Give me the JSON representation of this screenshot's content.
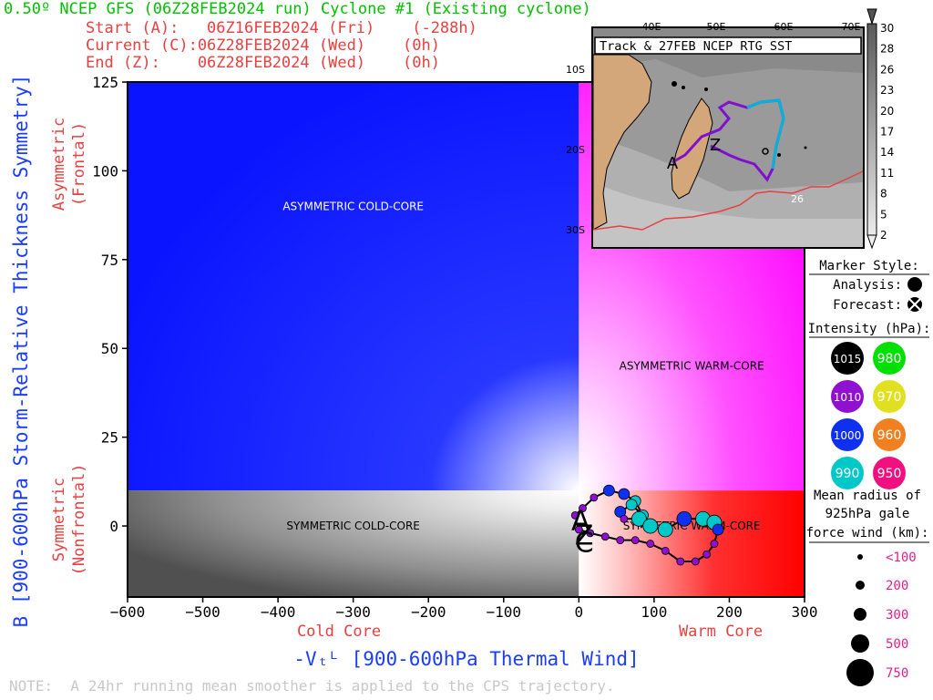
{
  "header": {
    "title": "0.50º NCEP GFS (06Z28FEB2024 run) Cyclone #1 (Existing cyclone)",
    "start": "Start (A):   06Z16FEB2024 (Fri)    (-288h)",
    "current": "Current (C):06Z28FEB2024 (Wed)    (0h)",
    "end": "End (Z):    06Z28FEB2024 (Wed)    (0h)"
  },
  "chart_data": {
    "type": "scatter",
    "xlabel": "-Vₜᴸ [900-600hPa Thermal Wind]",
    "ylabel": "B [900-600hPa Storm-Relative Thickness Symmetry]",
    "x_sublabel_left": "Cold Core",
    "x_sublabel_right": "Warm Core",
    "y_sublabel_top": "Asymmetric (Frontal)",
    "y_sublabel_top_lines": [
      "Asymmetric",
      "(Frontal)"
    ],
    "y_sublabel_bottom_lines": [
      "Symmetric",
      "(Nonfrontal)"
    ],
    "xlim": [
      -600,
      300
    ],
    "ylim": [
      -20,
      125
    ],
    "xticks": [
      -600,
      -500,
      -400,
      -300,
      -200,
      -100,
      0,
      100,
      200,
      300
    ],
    "yticks": [
      0,
      25,
      50,
      75,
      100,
      125
    ],
    "symmetry_threshold": 10,
    "regions": {
      "asym_cold": "ASYMMETRIC COLD-CORE",
      "asym_warm": "ASYMMETRIC WARM-CORE",
      "sym_cold": "SYMMETRIC COLD-CORE",
      "sym_warm": "SYMMETRIC WARM-CORE"
    },
    "start_marker": "A",
    "end_marker": "Z",
    "current_marker": "C",
    "track": {
      "x": [
        -5,
        5,
        20,
        40,
        60,
        75,
        85,
        70,
        55,
        60,
        80,
        95,
        115,
        140,
        165,
        180,
        185,
        180,
        170,
        155,
        135,
        115,
        95,
        75,
        55,
        35,
        15,
        0
      ],
      "y": [
        3,
        5,
        8,
        10,
        9,
        7,
        3,
        6,
        4,
        2,
        2,
        0,
        -1,
        2,
        2,
        1,
        -1,
        -5,
        -8,
        -10,
        -10,
        -7,
        -5,
        -4,
        -4,
        -3,
        -2,
        -1
      ],
      "pressure": [
        1010,
        1010,
        1010,
        1000,
        1000,
        990,
        990,
        990,
        1000,
        1010,
        990,
        990,
        990,
        1000,
        990,
        990,
        1000,
        1010,
        1010,
        1010,
        1010,
        1010,
        1010,
        1010,
        1010,
        1010,
        1010,
        1010
      ],
      "size": [
        200,
        200,
        200,
        300,
        300,
        300,
        300,
        300,
        300,
        200,
        500,
        500,
        500,
        500,
        500,
        500,
        300,
        200,
        200,
        200,
        200,
        200,
        200,
        200,
        200,
        200,
        200,
        200
      ]
    }
  },
  "inset": {
    "title": "Track & 27FEB NCEP RTG SST",
    "lon_labels": [
      "40E",
      "50E",
      "60E",
      "70E"
    ],
    "lat_labels": [
      "10S",
      "20S",
      "30S"
    ],
    "sst_label": "26",
    "colorbar_ticks": [
      30,
      28,
      26,
      23,
      20,
      17,
      14,
      11,
      8,
      5,
      2
    ]
  },
  "legend": {
    "marker_style_title": "Marker Style:",
    "analysis_label": "Analysis:",
    "forecast_label": "Forecast:",
    "intensity_title": "Intensity (hPa):",
    "intensity": [
      {
        "value": "1015",
        "color": "#000000",
        "text_color": "#ffffff"
      },
      {
        "value": "980",
        "color": "#00e000",
        "text_color": "#ffffff"
      },
      {
        "value": "1010",
        "color": "#9010d0",
        "text_color": "#ffffff"
      },
      {
        "value": "970",
        "color": "#e0e020",
        "text_color": "#ffffff"
      },
      {
        "value": "1000",
        "color": "#1030f0",
        "text_color": "#ffffff"
      },
      {
        "value": "960",
        "color": "#f08020",
        "text_color": "#ffffff"
      },
      {
        "value": "990",
        "color": "#00c8c8",
        "text_color": "#ffffff"
      },
      {
        "value": "950",
        "color": "#f01080",
        "text_color": "#ffffff"
      }
    ],
    "radius_title_lines": [
      "Mean radius of",
      "925hPa gale",
      "force wind (km):"
    ],
    "radius": [
      {
        "label": "<100",
        "r": 3
      },
      {
        "label": "200",
        "r": 5
      },
      {
        "label": "300",
        "r": 7
      },
      {
        "label": "500",
        "r": 10
      },
      {
        "label": "750",
        "r": 15
      }
    ]
  },
  "note": "NOTE:  A 24hr running mean smoother is applied to the CPS trajectory.",
  "colors": {
    "asym_cold": "#0a14ff",
    "asym_warm": "#ff10ff",
    "sym_cold": "#505050",
    "sym_warm": "#ff0000",
    "label_red": "#e84040",
    "label_blue": "#1a3cff",
    "title_green": "#00c000"
  }
}
